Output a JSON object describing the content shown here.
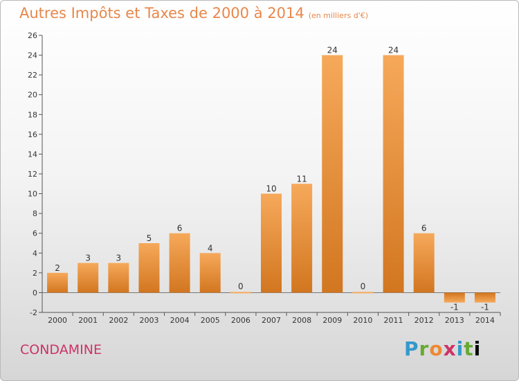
{
  "header": {
    "title": "Autres Impôts et Taxes de 2000 à 2014",
    "unit": "(en milliers d'€)"
  },
  "footer": {
    "town": "CONDAMINE",
    "brand": "Proxiti"
  },
  "colors": {
    "bar_light": "#f6a95a",
    "bar_dark": "#d27620",
    "title": "#e8874a",
    "town": "#cc3366"
  },
  "chart_data": {
    "type": "bar",
    "title": "Autres Impôts et Taxes de 2000 à 2014",
    "xlabel": "",
    "ylabel": "",
    "categories": [
      "2000",
      "2001",
      "2002",
      "2003",
      "2004",
      "2005",
      "2006",
      "2007",
      "2008",
      "2009",
      "2010",
      "2011",
      "2012",
      "2013",
      "2014"
    ],
    "values": [
      2,
      3,
      3,
      5,
      6,
      4,
      0,
      10,
      11,
      24,
      0,
      24,
      6,
      -1,
      -1
    ],
    "ylim": [
      -2,
      26
    ],
    "yticks": [
      -2,
      0,
      2,
      4,
      6,
      8,
      10,
      12,
      14,
      16,
      18,
      20,
      22,
      24,
      26
    ],
    "grid": false,
    "legend": "none"
  }
}
